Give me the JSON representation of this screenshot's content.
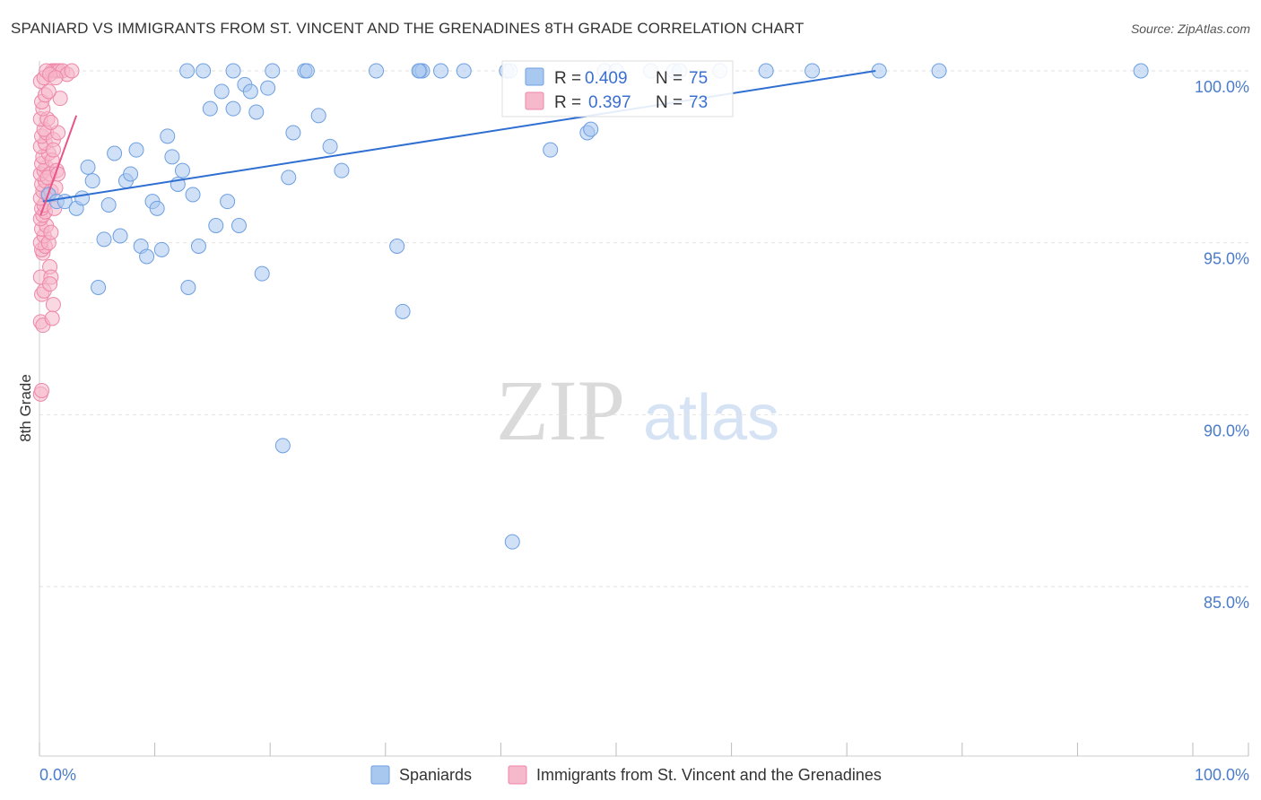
{
  "header": {
    "title": "SPANIARD VS IMMIGRANTS FROM ST. VINCENT AND THE GRENADINES 8TH GRADE CORRELATION CHART",
    "source": "Source: ZipAtlas.com"
  },
  "watermark": {
    "zip": "ZIP",
    "atlas": "atlas"
  },
  "colors": {
    "blue_fill": "#a9c8f0",
    "blue_stroke": "#6e9fe0",
    "blue_line": "#2f6fd1",
    "pink_fill": "#f6b8cb",
    "pink_stroke": "#ee86a8",
    "pink_line": "#e8548a",
    "grid": "#e2e2e2",
    "axis_text": "#4a7cc9"
  },
  "chart_data": {
    "type": "scatter",
    "title": "SPANIARD VS IMMIGRANTS FROM ST. VINCENT AND THE GRENADINES 8TH GRADE CORRELATION CHART",
    "xlabel": "",
    "ylabel": "8th Grade",
    "xlim": [
      0,
      100
    ],
    "ylim": [
      80.5,
      100.7
    ],
    "y_ticks": [
      {
        "value": 100,
        "label": "100.0%"
      },
      {
        "value": 95,
        "label": "95.0%"
      },
      {
        "value": 90,
        "label": "90.0%"
      },
      {
        "value": 85,
        "label": "85.0%"
      }
    ],
    "x_tick_labels": {
      "left": "0.0%",
      "right": "100.0%"
    },
    "grid": true,
    "legend_position": "bottom",
    "series": [
      {
        "name": "Spaniards",
        "R": "0.409",
        "N": "75",
        "trend": {
          "x": [
            0.3,
            72.5
          ],
          "y": [
            96.2,
            100.0
          ]
        },
        "points": [
          [
            0.8,
            96.4
          ],
          [
            1.5,
            96.2
          ],
          [
            2.2,
            96.2
          ],
          [
            3.2,
            96.0
          ],
          [
            3.7,
            96.3
          ],
          [
            4.2,
            97.2
          ],
          [
            4.6,
            96.8
          ],
          [
            5.1,
            93.7
          ],
          [
            5.6,
            95.1
          ],
          [
            6.0,
            96.1
          ],
          [
            6.5,
            97.6
          ],
          [
            7.0,
            95.2
          ],
          [
            7.5,
            96.8
          ],
          [
            7.9,
            97.0
          ],
          [
            8.4,
            97.7
          ],
          [
            8.8,
            94.9
          ],
          [
            9.3,
            94.6
          ],
          [
            9.8,
            96.2
          ],
          [
            10.2,
            96.0
          ],
          [
            10.6,
            94.8
          ],
          [
            11.1,
            98.1
          ],
          [
            11.5,
            97.5
          ],
          [
            12.0,
            96.7
          ],
          [
            12.4,
            97.1
          ],
          [
            12.9,
            93.7
          ],
          [
            13.3,
            96.4
          ],
          [
            13.8,
            94.9
          ],
          [
            14.2,
            100.0
          ],
          [
            14.8,
            98.9
          ],
          [
            15.3,
            95.5
          ],
          [
            15.8,
            99.4
          ],
          [
            16.3,
            96.2
          ],
          [
            16.8,
            98.9
          ],
          [
            17.3,
            95.5
          ],
          [
            17.8,
            99.6
          ],
          [
            18.3,
            99.4
          ],
          [
            18.8,
            98.8
          ],
          [
            19.3,
            94.1
          ],
          [
            19.8,
            99.5
          ],
          [
            20.2,
            100.0
          ],
          [
            21.1,
            89.1
          ],
          [
            21.6,
            96.9
          ],
          [
            22.0,
            98.2
          ],
          [
            23.0,
            100.0
          ],
          [
            24.2,
            98.7
          ],
          [
            25.2,
            97.8
          ],
          [
            26.2,
            97.1
          ],
          [
            29.2,
            100.0
          ],
          [
            31.0,
            94.9
          ],
          [
            31.5,
            93.0
          ],
          [
            33.0,
            100.0
          ],
          [
            33.2,
            100.0
          ],
          [
            34.8,
            100.0
          ],
          [
            36.8,
            100.0
          ],
          [
            40.5,
            100.0
          ],
          [
            41.0,
            86.3
          ],
          [
            44.3,
            97.7
          ],
          [
            47.5,
            98.2
          ],
          [
            47.8,
            98.3
          ],
          [
            49.0,
            100.0
          ],
          [
            50.0,
            100.0
          ],
          [
            53.0,
            100.0
          ],
          [
            55.0,
            100.0
          ],
          [
            59.0,
            100.0
          ],
          [
            63.0,
            100.0
          ],
          [
            67.0,
            100.0
          ],
          [
            72.8,
            100.0
          ],
          [
            78.0,
            100.0
          ],
          [
            95.5,
            100.0
          ],
          [
            12.8,
            100.0
          ],
          [
            16.8,
            100.0
          ],
          [
            23.2,
            100.0
          ],
          [
            32.9,
            100.0
          ],
          [
            40.8,
            100.0
          ],
          [
            55.5,
            100.0
          ]
        ]
      },
      {
        "name": "Immigrants from St. Vincent and the Grenadines",
        "R": "0.397",
        "N": "73",
        "trend": {
          "x": [
            0.1,
            3.2
          ],
          "y": [
            95.8,
            98.7
          ]
        },
        "points": [
          [
            0.1,
            90.6
          ],
          [
            0.2,
            90.7
          ],
          [
            0.1,
            92.7
          ],
          [
            0.3,
            92.6
          ],
          [
            0.2,
            93.5
          ],
          [
            0.4,
            93.6
          ],
          [
            0.1,
            94.0
          ],
          [
            0.3,
            94.7
          ],
          [
            0.2,
            94.8
          ],
          [
            0.5,
            94.9
          ],
          [
            0.1,
            95.0
          ],
          [
            0.4,
            95.2
          ],
          [
            0.2,
            95.4
          ],
          [
            0.6,
            95.5
          ],
          [
            0.1,
            95.7
          ],
          [
            0.3,
            95.8
          ],
          [
            0.5,
            95.9
          ],
          [
            0.2,
            96.0
          ],
          [
            0.4,
            96.1
          ],
          [
            0.1,
            96.3
          ],
          [
            0.7,
            96.4
          ],
          [
            0.3,
            96.5
          ],
          [
            0.2,
            96.7
          ],
          [
            0.5,
            96.8
          ],
          [
            0.1,
            97.0
          ],
          [
            0.4,
            97.1
          ],
          [
            0.6,
            97.2
          ],
          [
            0.2,
            97.3
          ],
          [
            0.3,
            97.5
          ],
          [
            0.8,
            97.6
          ],
          [
            0.1,
            97.8
          ],
          [
            0.5,
            97.9
          ],
          [
            0.2,
            98.1
          ],
          [
            0.6,
            98.2
          ],
          [
            0.4,
            98.3
          ],
          [
            0.1,
            98.6
          ],
          [
            0.7,
            98.6
          ],
          [
            0.3,
            98.9
          ],
          [
            0.2,
            99.1
          ],
          [
            0.5,
            99.3
          ],
          [
            0.1,
            99.7
          ],
          [
            0.4,
            99.8
          ],
          [
            0.9,
            94.3
          ],
          [
            1.0,
            94.0
          ],
          [
            1.2,
            93.2
          ],
          [
            1.1,
            92.8
          ],
          [
            0.8,
            95.0
          ],
          [
            1.3,
            96.0
          ],
          [
            1.0,
            96.5
          ],
          [
            1.4,
            96.6
          ],
          [
            0.9,
            97.0
          ],
          [
            1.1,
            97.4
          ],
          [
            1.5,
            97.1
          ],
          [
            1.2,
            98.0
          ],
          [
            1.6,
            98.2
          ],
          [
            1.0,
            98.5
          ],
          [
            1.8,
            99.2
          ],
          [
            1.1,
            100.0
          ],
          [
            1.3,
            100.0
          ],
          [
            1.5,
            100.0
          ],
          [
            1.7,
            100.0
          ],
          [
            2.0,
            100.0
          ],
          [
            2.4,
            99.9
          ],
          [
            2.8,
            100.0
          ],
          [
            0.6,
            100.0
          ],
          [
            0.9,
            99.9
          ],
          [
            1.4,
            99.8
          ],
          [
            0.8,
            99.4
          ],
          [
            1.2,
            97.7
          ],
          [
            0.7,
            96.9
          ],
          [
            1.6,
            97.0
          ],
          [
            0.9,
            93.8
          ],
          [
            1.0,
            95.3
          ]
        ]
      }
    ]
  },
  "legend": {
    "items": [
      {
        "label": "Spaniards"
      },
      {
        "label": "Immigrants from St. Vincent and the Grenadines"
      }
    ]
  },
  "stats": {
    "r_label": "R =",
    "n_label": "N =",
    "rows": [
      {
        "r": "0.409",
        "n": "75"
      },
      {
        "r": "0.397",
        "n": "73"
      }
    ]
  }
}
